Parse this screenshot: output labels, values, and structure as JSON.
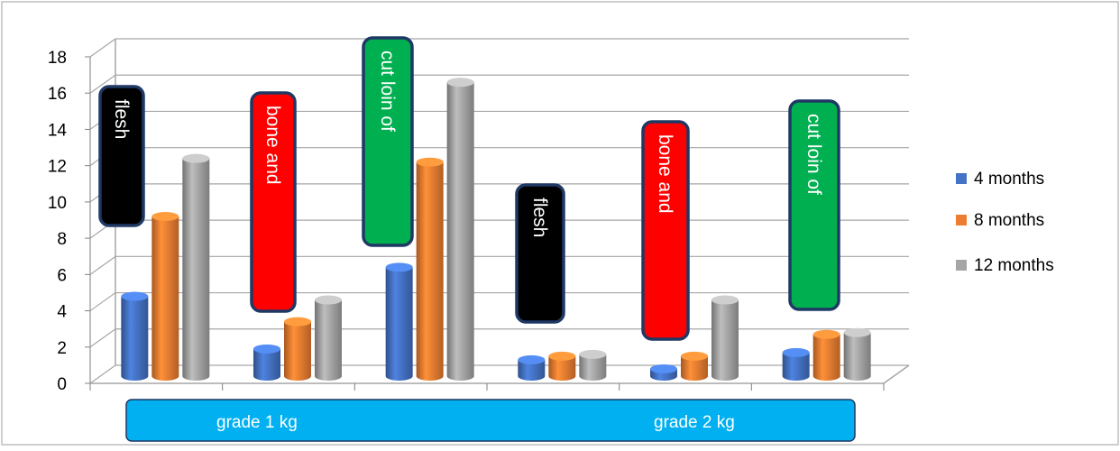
{
  "chart_data": {
    "type": "bar",
    "title": "",
    "xlabel": "",
    "ylabel": "",
    "ylim": [
      0,
      18
    ],
    "yticks": [
      "0",
      "2",
      "4",
      "6",
      "8",
      "10",
      "12",
      "14",
      "16",
      "18"
    ],
    "categories": [
      "flesh",
      "bone and",
      "cut loin of",
      "flesh",
      "bone and",
      "cut loin of"
    ],
    "groups": [
      "grade  1  kg",
      "grade 2 kg"
    ],
    "series": [
      {
        "name": "4 months",
        "color": "#4472C4",
        "values": [
          4.4,
          1.5,
          6.0,
          0.9,
          0.4,
          1.3
        ]
      },
      {
        "name": "8 months",
        "color": "#ED7D31",
        "values": [
          8.8,
          3.0,
          11.8,
          1.1,
          1.1,
          2.3
        ]
      },
      {
        "name": "12 months",
        "color": "#A5A5A5",
        "values": [
          12.0,
          4.2,
          16.2,
          1.2,
          4.2,
          2.4
        ]
      }
    ],
    "category_box_colors": [
      "#000000",
      "#FF0000",
      "#00B050",
      "#000000",
      "#FF0000",
      "#00B050"
    ],
    "group_band_color": "#00B0F0",
    "grid": true,
    "legend_position": "right"
  }
}
